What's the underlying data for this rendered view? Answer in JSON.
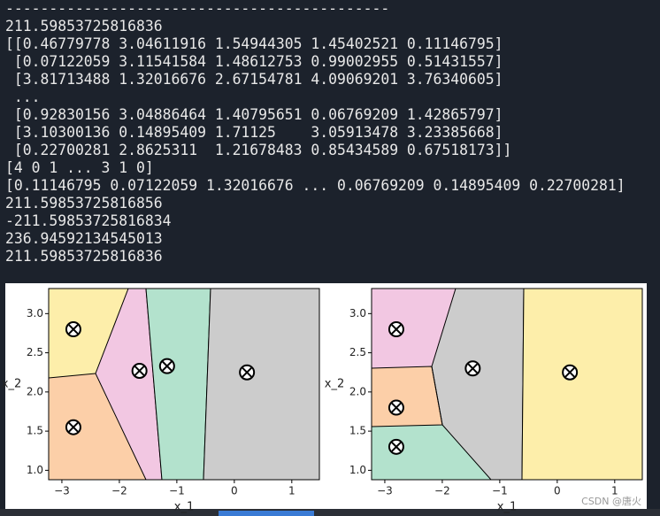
{
  "console": {
    "lines": [
      "--------------------------------------------",
      "211.59853725816836",
      "[[0.46779778 3.04611916 1.54944305 1.45402521 0.11146795]",
      " [0.07122059 3.11541584 1.48612753 0.99002955 0.51431557]",
      " [3.81713488 1.32016676 2.67154781 4.09069201 3.76340605]",
      " ...",
      " [0.92830156 3.04886464 1.40795651 0.06769209 1.42865797]",
      " [3.10300136 0.14895409 1.71125    3.05913478 3.23385668]",
      " [0.22700281 2.8625311  1.21678483 0.85434589 0.67518173]]",
      "[4 0 1 ... 3 1 0]",
      "[0.11146795 0.07122059 1.32016676 ... 0.06769209 0.14895409 0.22700281]",
      "211.59853725816856",
      "-211.59853725816834",
      "236.94592134545013",
      "211.59853725816836"
    ]
  },
  "chart_data": [
    {
      "type": "scatter",
      "xlabel": "x_1",
      "ylabel": "x_2",
      "xlim": [
        -3.23,
        1.48
      ],
      "ylim": [
        0.88,
        3.32
      ],
      "xticks": [
        {
          "value": -3,
          "label": "−3"
        },
        {
          "value": -2,
          "label": "−2"
        },
        {
          "value": -1,
          "label": "−1"
        },
        0,
        1
      ],
      "yticks": [
        {
          "value": 1,
          "label": "1.0"
        },
        {
          "value": 1.5,
          "label": "1.5"
        },
        {
          "value": 2,
          "label": "2.0"
        },
        {
          "value": 2.5,
          "label": "2.5"
        },
        {
          "value": 3,
          "label": "3.0"
        }
      ],
      "centroids": {
        "x": [
          -2.8,
          -2.8,
          -1.65,
          -1.17,
          0.22
        ],
        "y": [
          2.8,
          1.55,
          2.27,
          2.33,
          2.25
        ]
      }
    },
    {
      "type": "scatter",
      "xlabel": "x_1",
      "ylabel": "x_2",
      "xlim": [
        -3.23,
        1.48
      ],
      "ylim": [
        0.88,
        3.32
      ],
      "xticks": [
        {
          "value": -3,
          "label": "−3"
        },
        {
          "value": -2,
          "label": "−2"
        },
        {
          "value": -1,
          "label": "−1"
        },
        0,
        1
      ],
      "yticks": [
        {
          "value": 1,
          "label": "1.0"
        },
        {
          "value": 1.5,
          "label": "1.5"
        },
        {
          "value": 2,
          "label": "2.0"
        },
        {
          "value": 2.5,
          "label": "2.5"
        },
        {
          "value": 3,
          "label": "3.0"
        }
      ],
      "centroids": {
        "x": [
          -2.8,
          -2.8,
          -2.8,
          -1.47,
          0.22
        ],
        "y": [
          2.8,
          1.8,
          1.3,
          2.3,
          2.25
        ]
      }
    }
  ],
  "watermark": "CSDN @唐火"
}
